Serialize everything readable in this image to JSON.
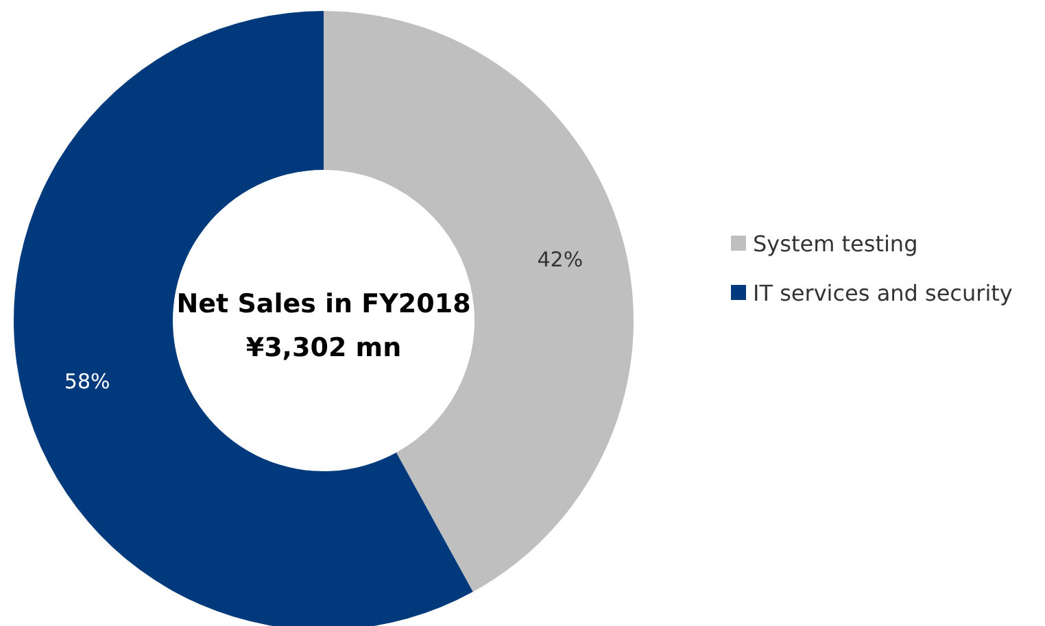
{
  "chart_data": {
    "type": "donut",
    "categories": [
      "System testing",
      "IT services and security"
    ],
    "values": [
      42,
      58
    ],
    "colors": [
      "#bfbfbf",
      "#003a7d"
    ],
    "value_labels": [
      "42%",
      "58%"
    ],
    "annotations": [
      "Net Sales in FY2018",
      "¥3,302 mn"
    ],
    "legend": "right"
  }
}
